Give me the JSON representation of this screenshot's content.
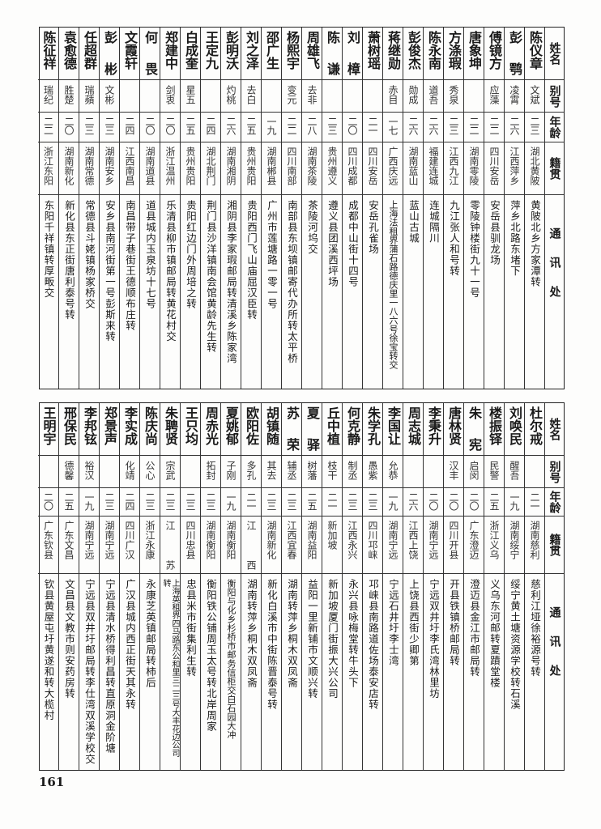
{
  "headers": {
    "name": "姓名",
    "alias": "别号",
    "age": "年龄",
    "origin": "籍贯",
    "address": "通讯处"
  },
  "page_number": "161",
  "top_rows": [
    {
      "name": "陈仪章",
      "alias": "文斌",
      "age": "二三",
      "origin": "湖北黄陂",
      "address": "黄陂北乡方家潭转"
    },
    {
      "name": "彭鹗",
      "alias": "凌霄",
      "age": "二六",
      "origin": "江西萍乡",
      "address": "萍乡北路东堵下"
    },
    {
      "name": "傅镜方",
      "alias": "应藻",
      "age": "二二",
      "origin": "四川安岳",
      "address": "安岳县驯龙场"
    },
    {
      "name": "唐象坤",
      "alias": "",
      "age": "二二",
      "origin": "湖南零陵",
      "address": "零陵钟楼街九十一号"
    },
    {
      "name": "方涤瑕",
      "alias": "秀泉",
      "age": "二三",
      "origin": "江西九江",
      "address": "九江张人和号转"
    },
    {
      "name": "陈永南",
      "alias": "道吾",
      "age": "二六",
      "origin": "福建连城",
      "address": "连城隔川"
    },
    {
      "name": "彭俊杰",
      "alias": "勋成",
      "age": "二六",
      "origin": "湖南蓝山",
      "address": "蓝山古城"
    },
    {
      "name": "蒋继勋",
      "alias": "赤目",
      "age": "一七",
      "origin": "广西庆远",
      "address": "上海法租界蒲石路德庆里一八六号徐宝转交"
    },
    {
      "name": "萧树瑶",
      "alias": "",
      "age": "二一",
      "origin": "四川安岳",
      "address": "安岳孔雀场"
    },
    {
      "name": "刘樟",
      "alias": "",
      "age": "二〇",
      "origin": "四川成都",
      "address": "成都中山街十四号"
    },
    {
      "name": "陈谦",
      "alias": "",
      "age": "二三",
      "origin": "贵州遵义",
      "address": "遵义县团溪西坪场"
    },
    {
      "name": "周雄飞",
      "alias": "去非",
      "age": "二八",
      "origin": "湖南茶陵",
      "address": "茶陵河坞交"
    },
    {
      "name": "杨熙宇",
      "alias": "变元",
      "age": "二二",
      "origin": "四川南部",
      "address": "南部县东坝镇邮寄代办所转太平桥"
    },
    {
      "name": "邵广生",
      "alias": "",
      "age": "一九",
      "origin": "湖南郴县",
      "address": "广州市莲塘路一零一号"
    },
    {
      "name": "刘之泽",
      "alias": "去白",
      "age": "二五",
      "origin": "贵州贵阳",
      "address": "贵阳西门飞山庙屈汉臣转"
    },
    {
      "name": "彭明沃",
      "alias": "灼桃",
      "age": "二六",
      "origin": "湖南湘阴",
      "address": "湘阴县李家瑕邮局转清溪乡陈家湾"
    },
    {
      "name": "王定九",
      "alias": "",
      "age": "二四",
      "origin": "湖北荆门",
      "address": "荆门县沙洋镇南会馆黄龄先生转"
    },
    {
      "name": "白成奎",
      "alias": "星五",
      "age": "二五",
      "origin": "贵州贵阳",
      "address": "贵阳红边门外周培之转"
    },
    {
      "name": "郑建中",
      "alias": "剑衷",
      "age": "二〇",
      "origin": "浙江温州",
      "address": "乐清县柳市镇邮局转黄花村交"
    },
    {
      "name": "何畏",
      "alias": "",
      "age": "二〇",
      "origin": "湖南道县",
      "address": "道县城内玉泉坊十七号"
    },
    {
      "name": "文霞轩",
      "alias": "",
      "age": "二四",
      "origin": "江西南昌",
      "address": "南昌带子巷街王德顺布庄转"
    },
    {
      "name": "彭彬",
      "alias": "文彬",
      "age": "二三",
      "origin": "湖南安乡",
      "address": "安乡县南河街第一号彭斯来转"
    },
    {
      "name": "任超群",
      "alias": "瑞蘋",
      "age": "二三",
      "origin": "湖南常德",
      "address": "常德县斗姥镇杨家桥交"
    },
    {
      "name": "袁愈德",
      "alias": "胜楚",
      "age": "二〇",
      "origin": "湖南新化",
      "address": "新化县东正街唐利泰号转"
    },
    {
      "name": "陈征祥",
      "alias": "瑞纪",
      "age": "二二",
      "origin": "浙江东阳",
      "address": "东阳千祥镇转厚畈交"
    }
  ],
  "bottom_rows": [
    {
      "name": "杜尔戒",
      "alias": "",
      "age": "二一",
      "origin": "湖南慈利",
      "address": "慈利江垭徐裕源号转"
    },
    {
      "name": "刘唤民",
      "alias": "醒吾",
      "age": "一九",
      "origin": "湖南绥宁",
      "address": "绥宁黄土塘资源学校转石溪"
    },
    {
      "name": "楼振铎",
      "alias": "民警",
      "age": "二五",
      "origin": "浙江义乌",
      "address": "义乌东河邮转夏蹟堂楼"
    },
    {
      "name": "朱宪",
      "alias": "启闵",
      "age": "二〇",
      "origin": "广东澄迈",
      "address": "澄迈县金江市邮局转"
    },
    {
      "name": "唐林贤",
      "alias": "汉丰",
      "age": "二〇",
      "origin": "四川开县",
      "address": "开县铁镇桥邮局转"
    },
    {
      "name": "李秉升",
      "alias": "",
      "age": "二〇",
      "origin": "湖南宁远",
      "address": "宁远双井圩李氏湾林里坊"
    },
    {
      "name": "周志城",
      "alias": "",
      "age": "二六",
      "origin": "江西上饶",
      "address": "上饶县西街少卿第"
    },
    {
      "name": "李国让",
      "alias": "允恭",
      "age": "一九",
      "origin": "湖南宁远",
      "address": "宁远石井圩李士湾"
    },
    {
      "name": "朱学孔",
      "alias": "愚紫",
      "age": "二三",
      "origin": "四川邛崃",
      "address": "邛崃县南路道佐场泰安店转"
    },
    {
      "name": "何克静",
      "alias": "制丞",
      "age": "二三",
      "origin": "江西永兴",
      "address": "永兴县咏梅堂转牛头下"
    },
    {
      "name": "丘中植",
      "alias": "枝干",
      "age": "二一",
      "origin": "新加坡",
      "address": "新加坡厦门街振大兴公司"
    },
    {
      "name": "夏驿",
      "alias": "树藩",
      "age": "二五",
      "origin": "湖南益阳",
      "address": "益阳一里新铺市文顺兴转"
    },
    {
      "name": "苏荣",
      "alias": "辅丞",
      "age": "二三",
      "origin": "江西宜春",
      "address": "湖南转萍乡桐木双凤斋"
    },
    {
      "name": "胡镇随",
      "alias": "其去",
      "age": "二三",
      "origin": "湖南新化",
      "address": "新化白溪市中街陈晋泰号转"
    },
    {
      "name": "欧阳佐",
      "alias": "多孔",
      "age": "二一",
      "origin": "江西",
      "address": "湖南转萍乡桐木双凤斋"
    },
    {
      "name": "夏姚郁",
      "alias": "子刚",
      "age": "一九",
      "origin": "湖南衡阳",
      "address": "衡阳与化乡杉桥市邮务信柜交白石园大冲"
    },
    {
      "name": "周赤光",
      "alias": "拓封",
      "age": "二三",
      "origin": "湖南衡阳",
      "address": "衡阳铁公铺周玉太号转北岸周家"
    },
    {
      "name": "王只均",
      "alias": "",
      "age": "二三",
      "origin": "四川忠县",
      "address": "忠县米市街集利生转"
    },
    {
      "name": "朱聘贤",
      "alias": "宗武",
      "age": "二三",
      "origin": "江苏",
      "address": "上海英租界四马路东公和里三二三号大丰花边公司转"
    },
    {
      "name": "陈庆尚",
      "alias": "公心",
      "age": "二三",
      "origin": "浙江永康",
      "address": "永康芝英镇邮局转柿后"
    },
    {
      "name": "李实成",
      "alias": "化靖",
      "age": "二四",
      "origin": "四川广汉",
      "address": "广汉县城内西正街天其永转"
    },
    {
      "name": "郑景声",
      "alias": "",
      "age": "二三",
      "origin": "湖南宁远",
      "address": "宁远县清水桥得利昌转直原洞金阶塘"
    },
    {
      "name": "李邦铉",
      "alias": "裕汉",
      "age": "一九",
      "origin": "湖南宁远",
      "address": "宁远县双井圩邮局转李仕湾双溪学校交"
    },
    {
      "name": "邢保民",
      "alias": "德馨",
      "age": "二五",
      "origin": "广东文昌",
      "address": "文昌县文教市则安药房转"
    },
    {
      "name": "王明宇",
      "alias": "",
      "age": "二〇",
      "origin": "广东钦县",
      "address": "钦县黄屋屯圩黄遂和转大榄村"
    }
  ]
}
